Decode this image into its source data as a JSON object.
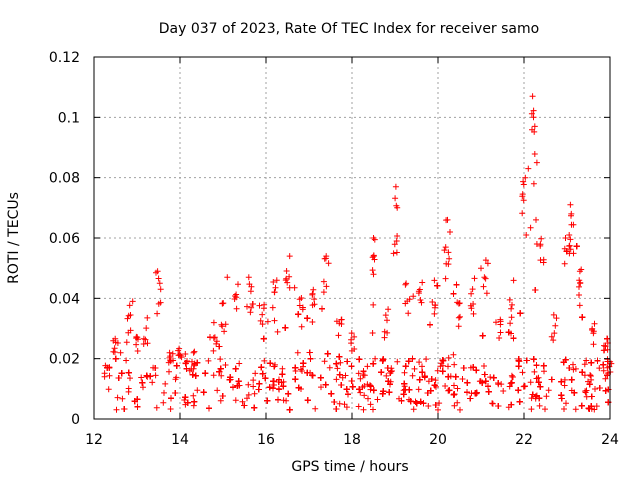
{
  "chart_data": {
    "type": "scatter",
    "title": "Day 037 of 2023, Rate Of TEC Index for receiver samo",
    "xlabel": "GPS time / hours",
    "ylabel": "ROTI / TECUs",
    "xlim": [
      12,
      24
    ],
    "ylim": [
      0,
      0.12
    ],
    "x_ticks": [
      "12",
      "14",
      "16",
      "18",
      "20",
      "22",
      "24"
    ],
    "y_ticks": [
      "0",
      "0.02",
      "0.04",
      "0.06",
      "0.08",
      "0.1",
      "0.12"
    ],
    "x_tick_values": [
      12,
      14,
      16,
      18,
      20,
      22,
      24
    ],
    "y_tick_values": [
      0,
      0.02,
      0.04,
      0.06,
      0.08,
      0.1,
      0.12
    ],
    "grid": true,
    "marker": "+",
    "marker_color": "#ff0000",
    "series": [
      {
        "name": "ROTI",
        "description": "dense scatter of ROTI values",
        "x_range": [
          12.3,
          24.0
        ],
        "baseline_range": [
          0.003,
          0.02
        ],
        "envelope": [
          [
            12.3,
            0.018
          ],
          [
            12.5,
            0.028
          ],
          [
            12.8,
            0.038
          ],
          [
            13.0,
            0.03
          ],
          [
            13.2,
            0.035
          ],
          [
            13.5,
            0.049
          ],
          [
            13.8,
            0.022
          ],
          [
            14.0,
            0.025
          ],
          [
            14.3,
            0.022
          ],
          [
            14.8,
            0.032
          ],
          [
            15.0,
            0.04
          ],
          [
            15.3,
            0.046
          ],
          [
            15.6,
            0.045
          ],
          [
            15.9,
            0.041
          ],
          [
            16.2,
            0.046
          ],
          [
            16.5,
            0.053
          ],
          [
            16.8,
            0.042
          ],
          [
            17.1,
            0.043
          ],
          [
            17.4,
            0.054
          ],
          [
            17.7,
            0.035
          ],
          [
            18.0,
            0.03
          ],
          [
            18.5,
            0.06
          ],
          [
            18.8,
            0.038
          ],
          [
            19.0,
            0.077
          ],
          [
            19.3,
            0.045
          ],
          [
            19.6,
            0.046
          ],
          [
            19.9,
            0.046
          ],
          [
            20.2,
            0.066
          ],
          [
            20.5,
            0.04
          ],
          [
            20.8,
            0.048
          ],
          [
            21.1,
            0.053
          ],
          [
            21.4,
            0.035
          ],
          [
            21.7,
            0.04
          ],
          [
            22.0,
            0.085
          ],
          [
            22.2,
            0.107
          ],
          [
            22.4,
            0.06
          ],
          [
            22.7,
            0.035
          ],
          [
            23.0,
            0.061
          ],
          [
            23.1,
            0.071
          ],
          [
            23.3,
            0.05
          ],
          [
            23.6,
            0.033
          ],
          [
            23.9,
            0.032
          ],
          [
            24.0,
            0.02
          ]
        ],
        "highlights": [
          [
            12.9,
            0.039
          ],
          [
            13.48,
            0.049
          ],
          [
            13.55,
            0.043
          ],
          [
            15.1,
            0.047
          ],
          [
            15.6,
            0.047
          ],
          [
            16.25,
            0.046
          ],
          [
            16.55,
            0.054
          ],
          [
            17.4,
            0.054
          ],
          [
            18.5,
            0.06
          ],
          [
            18.5,
            0.048
          ],
          [
            19.02,
            0.077
          ],
          [
            19.05,
            0.07
          ],
          [
            19.04,
            0.059
          ],
          [
            20.22,
            0.066
          ],
          [
            20.28,
            0.062
          ],
          [
            20.15,
            0.056
          ],
          [
            22.03,
            0.08
          ],
          [
            22.1,
            0.083
          ],
          [
            22.2,
            0.107
          ],
          [
            22.22,
            0.1
          ],
          [
            22.25,
            0.097
          ],
          [
            22.3,
            0.085
          ],
          [
            22.28,
            0.066
          ],
          [
            22.05,
            0.061
          ],
          [
            22.3,
            0.058
          ],
          [
            23.08,
            0.071
          ],
          [
            23.1,
            0.068
          ],
          [
            23.05,
            0.061
          ],
          [
            23.3,
            0.049
          ],
          [
            21.0,
            0.05
          ]
        ]
      }
    ]
  }
}
